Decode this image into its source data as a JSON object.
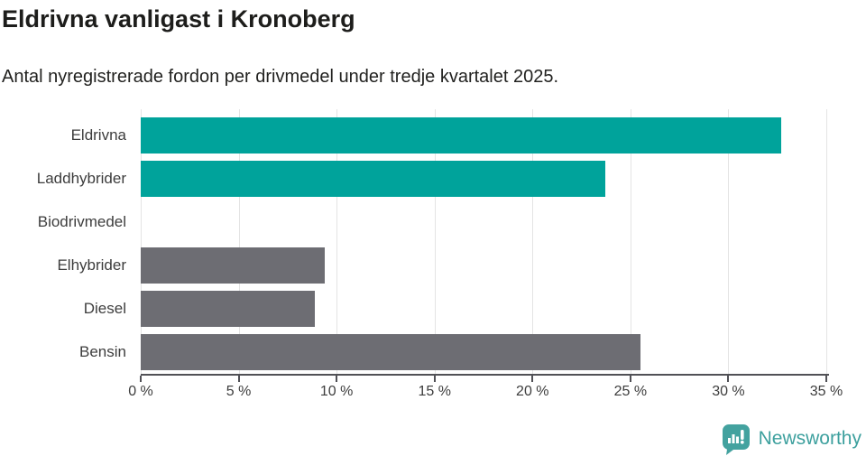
{
  "header": {
    "title": "Eldrivna vanligast i Kronoberg",
    "subtitle": "Antal nyregistrerade fordon per drivmedel under tredje kvartalet 2025."
  },
  "chart_data": {
    "type": "bar",
    "orientation": "horizontal",
    "title": "Eldrivna vanligast i Kronoberg",
    "subtitle": "Antal nyregistrerade fordon per drivmedel under tredje kvartalet 2025.",
    "categories": [
      "Eldrivna",
      "Laddhybrider",
      "Biodrivmedel",
      "Elhybrider",
      "Diesel",
      "Bensin"
    ],
    "values": [
      32.7,
      23.7,
      0,
      9.4,
      8.9,
      25.5
    ],
    "unit": "%",
    "bar_colors": [
      "#00a39b",
      "#00a39b",
      "#6d6d73",
      "#6d6d73",
      "#6d6d73",
      "#6d6d73"
    ],
    "xlim": [
      0,
      35
    ],
    "x_ticks": [
      0,
      5,
      10,
      15,
      20,
      25,
      30,
      35
    ],
    "x_tick_labels": [
      "0 %",
      "5 %",
      "10 %",
      "15 %",
      "20 %",
      "25 %",
      "30 %",
      "35 %"
    ],
    "grid": "vertical-gridlines",
    "legend": "none"
  },
  "footer": {
    "brand": "Newsworthy",
    "brand_color": "#3da09e",
    "logo_icon": "newsworthy-bar-chart-speech-bubble"
  },
  "colors": {
    "teal_bar": "#00a39b",
    "gray_bar": "#6d6d73",
    "gridline": "#e4e4e4",
    "axis": "#515156",
    "text": "#3d3d3d",
    "title_text": "#1d1d1b"
  }
}
